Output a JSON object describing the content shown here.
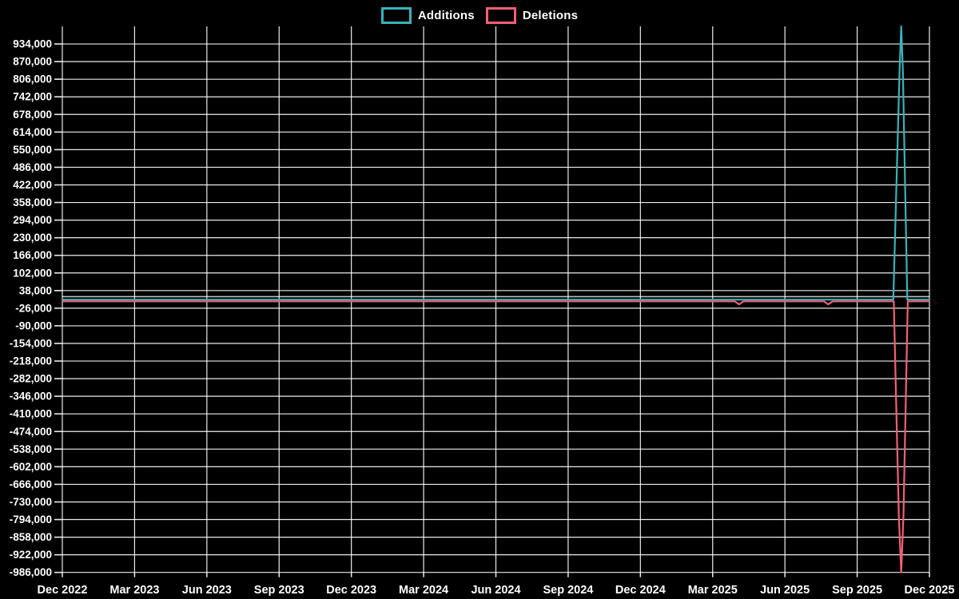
{
  "chart_data": {
    "type": "line",
    "title": "",
    "background_color": "#000000",
    "grid_color": "#ffffff",
    "text_color": "#ffffff",
    "legend_position": "top-center",
    "grid": true,
    "legend": [
      {
        "name": "Additions",
        "color": "#39b3b8"
      },
      {
        "name": "Deletions",
        "color": "#f25f78"
      }
    ],
    "x_axis": {
      "tick_labels": [
        "Dec 2022",
        "Mar 2023",
        "Jun 2023",
        "Sep 2023",
        "Dec 2023",
        "Mar 2024",
        "Jun 2024",
        "Sep 2024",
        "Dec 2024",
        "Mar 2025",
        "Jun 2025",
        "Sep 2025",
        "Dec 2025"
      ],
      "months_total": 36,
      "tick_every_months": 3
    },
    "y_axis": {
      "tick_labels": [
        "934,000",
        "870,000",
        "806,000",
        "742,000",
        "678,000",
        "614,000",
        "550,000",
        "486,000",
        "422,000",
        "358,000",
        "294,000",
        "230,000",
        "166,000",
        "102,000",
        "38,000",
        "-26,000",
        "-90,000",
        "-154,000",
        "-218,000",
        "-282,000",
        "-346,000",
        "-410,000",
        "-474,000",
        "-538,000",
        "-602,000",
        "-666,000",
        "-730,000",
        "-794,000",
        "-858,000",
        "-922,000",
        "-986,000"
      ],
      "first_tick_value": 934000,
      "tick_step": -64000,
      "axis_max": 998000,
      "axis_min": -986000
    },
    "series": [
      {
        "name": "Additions",
        "color": "#39b3b8",
        "points": [
          [
            0,
            5000
          ],
          [
            34.5,
            5000
          ],
          [
            34.76,
            834000
          ],
          [
            34.83,
            998000
          ],
          [
            34.9,
            834000
          ],
          [
            35.08,
            5000
          ],
          [
            36,
            5000
          ]
        ]
      },
      {
        "name": "Deletions",
        "color": "#f25f78",
        "points": [
          [
            0,
            -1000
          ],
          [
            27.92,
            -1000
          ],
          [
            28.1,
            -12000
          ],
          [
            28.28,
            -1000
          ],
          [
            31.62,
            -1000
          ],
          [
            31.8,
            -12000
          ],
          [
            31.98,
            -1000
          ],
          [
            34.52,
            -1000
          ],
          [
            34.73,
            -780000
          ],
          [
            34.83,
            -986000
          ],
          [
            34.92,
            -780000
          ],
          [
            35.1,
            -1000
          ],
          [
            36,
            -1000
          ]
        ]
      }
    ]
  }
}
